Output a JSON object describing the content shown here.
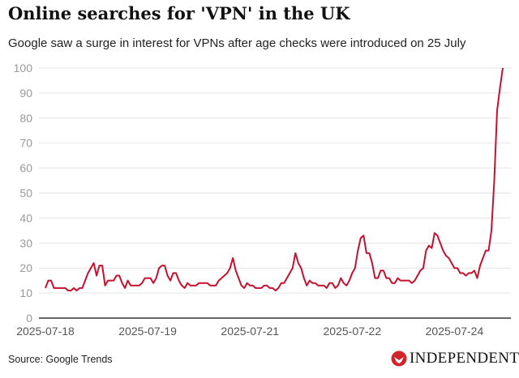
{
  "chart_data": {
    "type": "line",
    "title": "Online searches for 'VPN' in the UK",
    "subtitle": "Google saw a surge in interest for VPNs after age checks were introduced on 25 July",
    "source": "Source: Google Trends",
    "ylim": [
      0,
      100
    ],
    "y_ticks": [
      0,
      10,
      20,
      30,
      40,
      50,
      60,
      70,
      80,
      90,
      100
    ],
    "x_ticks": [
      {
        "label": "2025-07-18",
        "index": 0
      },
      {
        "label": "2025-07-19",
        "index": 36
      },
      {
        "label": "2025-07-21",
        "index": 72
      },
      {
        "label": "2025-07-22",
        "index": 108
      },
      {
        "label": "2025-07-24",
        "index": 144
      }
    ],
    "grid": true,
    "color": "#c8102e",
    "values": [
      12,
      15,
      15,
      12,
      12,
      12,
      12,
      12,
      11,
      11,
      12,
      11,
      12,
      12,
      15,
      18,
      20,
      22,
      17,
      21,
      21,
      13,
      15,
      15,
      15,
      17,
      17,
      14,
      12,
      15,
      13,
      13,
      13,
      13,
      14,
      16,
      16,
      16,
      14,
      16,
      20,
      21,
      21,
      17,
      15,
      18,
      18,
      15,
      13,
      12,
      14,
      13,
      13,
      13,
      14,
      14,
      14,
      14,
      13,
      13,
      13,
      15,
      16,
      17,
      18,
      20,
      24,
      19,
      16,
      13,
      12,
      14,
      13,
      13,
      12,
      12,
      12,
      13,
      13,
      12,
      12,
      11,
      12,
      14,
      14,
      16,
      18,
      20,
      26,
      22,
      20,
      16,
      13,
      15,
      14,
      14,
      13,
      13,
      13,
      12,
      14,
      14,
      12,
      13,
      16,
      14,
      13,
      15,
      18,
      20,
      27,
      32,
      33,
      26,
      26,
      22,
      16,
      16,
      19,
      19,
      16,
      16,
      14,
      14,
      16,
      15,
      15,
      15,
      15,
      14,
      15,
      17,
      19,
      20,
      27,
      29,
      28,
      34,
      33,
      30,
      27,
      25,
      24,
      22,
      20,
      20,
      18,
      18,
      17,
      18,
      18,
      19,
      16,
      21,
      24,
      27,
      27,
      35,
      55,
      83,
      92,
      100
    ]
  },
  "logo": {
    "text": "INDEPENDENT",
    "color": "#d1232a"
  }
}
